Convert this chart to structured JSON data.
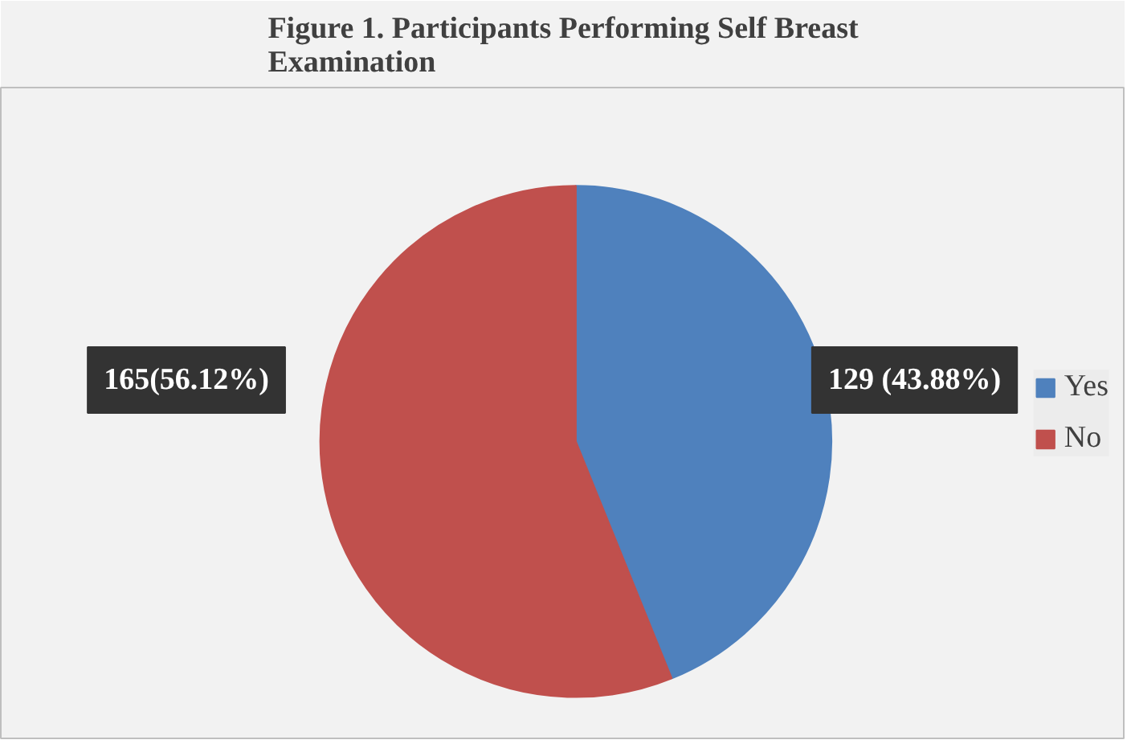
{
  "chart_data": {
    "type": "pie",
    "title": "Figure 1. Participants Performing Self Breast Examination",
    "categories": [
      "Yes",
      "No"
    ],
    "values": [
      129,
      165
    ],
    "colors": [
      "#4f81bd",
      "#c0504d"
    ],
    "value_labels": [
      "129 (43.88%)",
      "165(56.12%)"
    ],
    "legend": "right"
  }
}
